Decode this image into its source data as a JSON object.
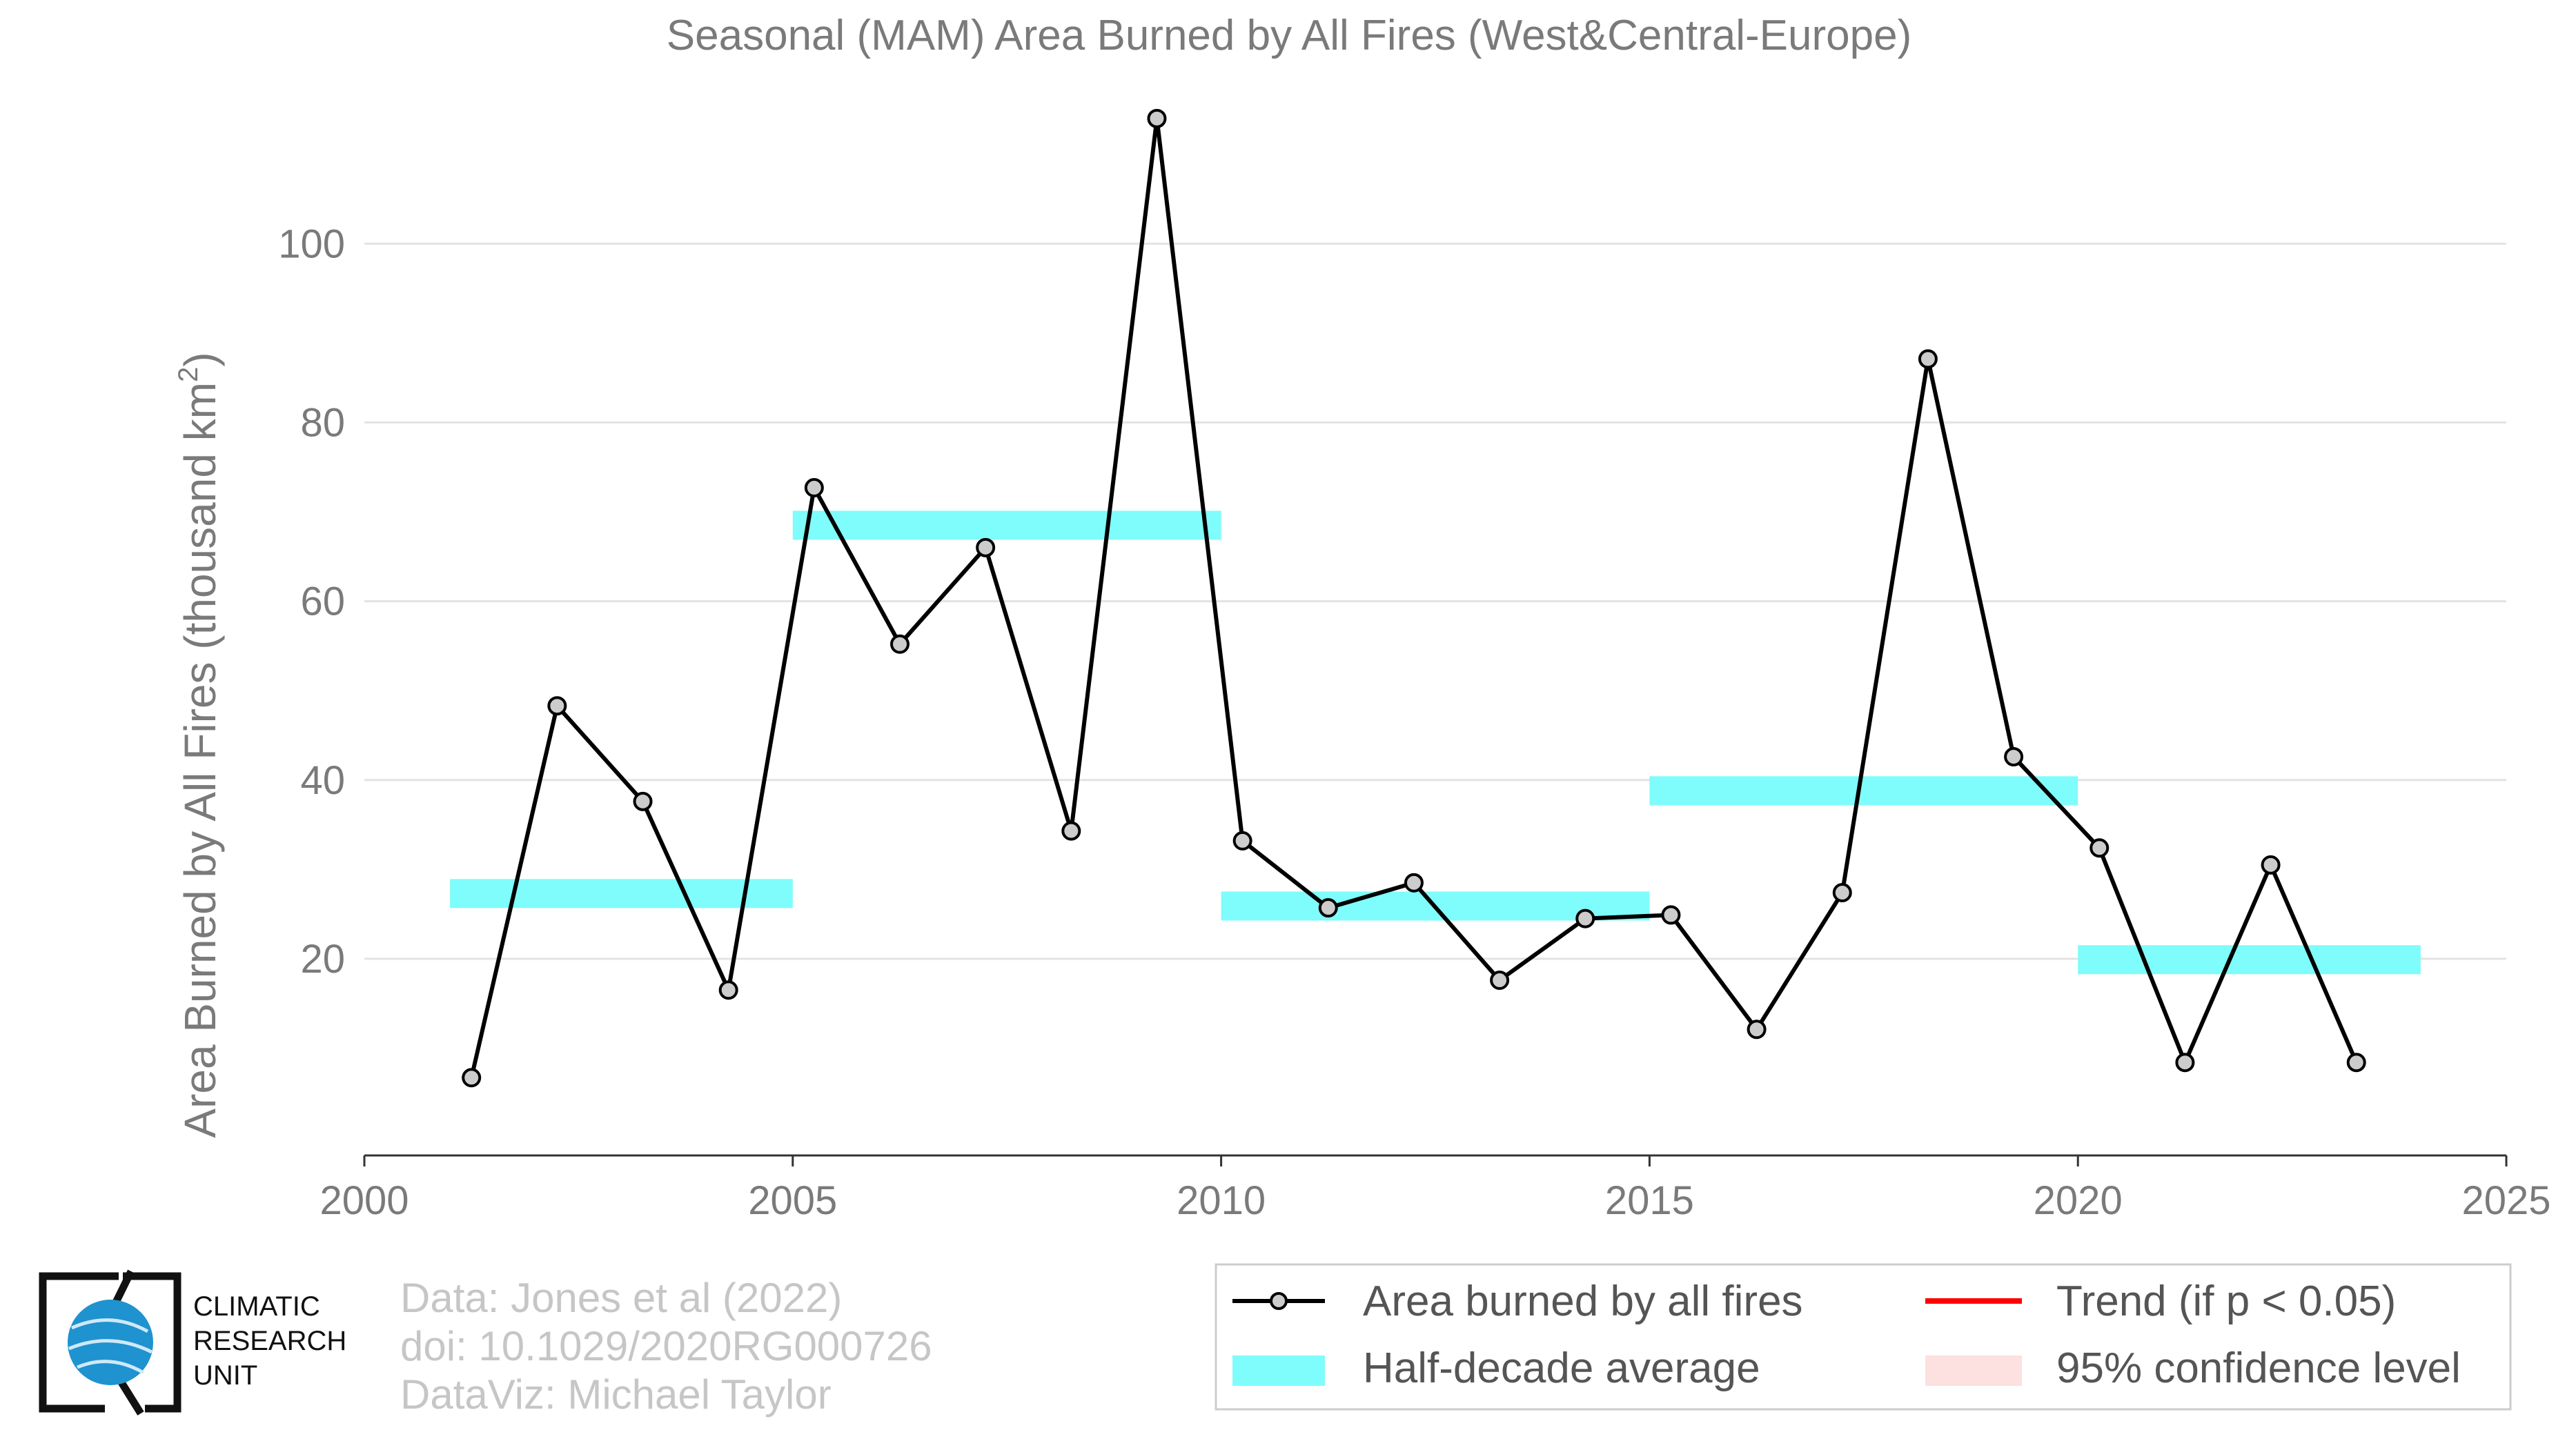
{
  "chart_data": {
    "type": "line",
    "title": "Seasonal (MAM) Area Burned by All Fires (West&Central-Europe)",
    "ylabel": "Area Burned by All Fires (thousand km",
    "ylabel_sup": "2",
    "ylabel_close": ")",
    "xlabel": "",
    "xlim": [
      2000,
      2025
    ],
    "ylim": [
      -2,
      118
    ],
    "xticks": [
      2000,
      2005,
      2010,
      2015,
      2020,
      2025
    ],
    "yticks": [
      20,
      40,
      60,
      80,
      100
    ],
    "grid": true,
    "series": [
      {
        "name": "Area burned by all fires",
        "color": "#000000",
        "x": [
          2001.25,
          2002.25,
          2003.25,
          2004.25,
          2005.25,
          2006.25,
          2007.25,
          2008.25,
          2009.25,
          2010.25,
          2011.25,
          2012.25,
          2013.25,
          2014.25,
          2015.25,
          2016.25,
          2017.25,
          2018.25,
          2019.25,
          2020.25,
          2021.25,
          2022.25,
          2023.25
        ],
        "values": [
          6.7,
          48.3,
          37.6,
          16.5,
          72.7,
          55.2,
          66.0,
          34.3,
          114.0,
          33.2,
          25.7,
          28.5,
          17.6,
          24.5,
          24.9,
          12.1,
          27.4,
          87.1,
          42.6,
          32.4,
          8.4,
          30.5,
          8.4
        ]
      }
    ],
    "half_decade_average": {
      "name": "Half-decade average",
      "color": "#7ffcfc",
      "segments": [
        {
          "x0": 2001,
          "x1": 2005,
          "y": 27.3
        },
        {
          "x0": 2005,
          "x1": 2010,
          "y": 68.5
        },
        {
          "x0": 2010,
          "x1": 2015,
          "y": 25.9
        },
        {
          "x0": 2015,
          "x1": 2020,
          "y": 38.8
        },
        {
          "x0": 2020,
          "x1": 2024,
          "y": 19.9
        }
      ]
    },
    "legend": {
      "placement": "bottom-right",
      "entries": [
        {
          "label": "Area burned by all fires",
          "kind": "line-marker",
          "color": "#000000"
        },
        {
          "label": "Trend (if p < 0.05)",
          "kind": "line",
          "color": "#ff0000"
        },
        {
          "label": "Half-decade average",
          "kind": "band",
          "color": "#7ffcfc"
        },
        {
          "label": "95% confidence level",
          "kind": "band",
          "color": "#fde0e0"
        }
      ]
    }
  },
  "credits": {
    "line1": "Data: Jones et al (2022)",
    "line2": "doi: 10.1029/2020RG000726",
    "line3": "DataViz: Michael Taylor"
  },
  "logo": {
    "line1": "CLIMATIC",
    "line2": "RESEARCH",
    "line3": "UNIT"
  }
}
